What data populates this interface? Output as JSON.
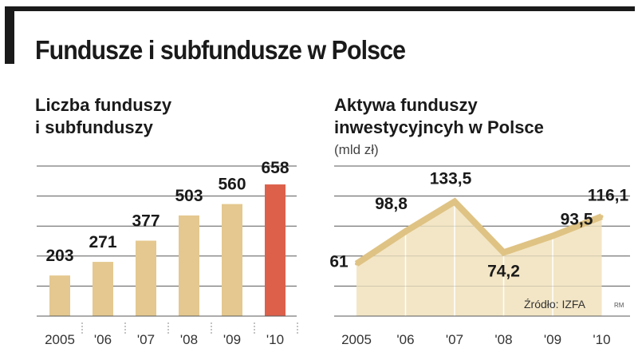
{
  "header": {
    "title": "Fundusze i subfundusze w Polsce"
  },
  "colors": {
    "bar": "#e4c88f",
    "bar_highlight": "#dc604a",
    "line": "#dfc384",
    "area": "#f3e6c6",
    "grid": "#5a5a5a"
  },
  "chart_data": [
    {
      "type": "bar",
      "title_line1": "Liczba funduszy",
      "title_line2": "i subfunduszy",
      "categories": [
        "2005",
        "'06",
        "'07",
        "'08",
        "'09",
        "'10"
      ],
      "values": [
        203,
        271,
        377,
        503,
        560,
        658
      ],
      "value_labels": [
        "203",
        "271",
        "377",
        "503",
        "560",
        "658"
      ],
      "highlight_index": 5,
      "ylim": [
        0,
        750
      ],
      "grid": true
    },
    {
      "type": "area",
      "title_line1": "Aktywa funduszy",
      "title_line2": "inwestycyjncyh w Polsce",
      "unit": "(mld zł)",
      "categories": [
        "2005",
        "'06",
        "'07",
        "'08",
        "'09",
        "'10"
      ],
      "values": [
        61,
        98.8,
        133.5,
        74.2,
        93.5,
        116.1
      ],
      "value_labels": [
        "61",
        "98,8",
        "133,5",
        "74,2",
        "93,5",
        "116,1"
      ],
      "ylim": [
        0,
        175
      ],
      "grid": true,
      "source": "Źródło: IZFA",
      "credit": "RM"
    }
  ]
}
